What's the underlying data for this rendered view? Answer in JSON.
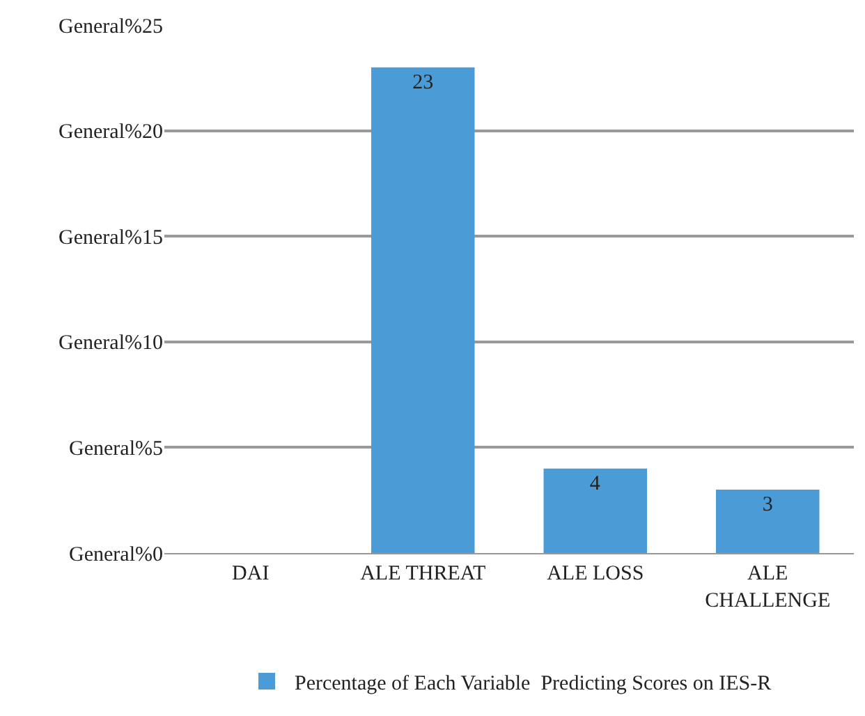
{
  "chart_data": {
    "type": "bar",
    "categories": [
      "DAI",
      "ALE THREAT",
      "ALE LOSS",
      "ALE CHALLENGE"
    ],
    "series": [
      {
        "name": "Percentage of Each Variable  Predicting Scores on IES-R",
        "color": "#4a9bd6",
        "values": [
          0,
          23,
          4,
          3
        ],
        "value_labels": [
          null,
          "23",
          "4",
          "3"
        ]
      }
    ],
    "ylim": [
      0,
      25
    ],
    "yticks": [
      {
        "value": 0,
        "label": "General%0"
      },
      {
        "value": 5,
        "label": "General%5"
      },
      {
        "value": 10,
        "label": "General%10"
      },
      {
        "value": 15,
        "label": "General%15"
      },
      {
        "value": 20,
        "label": "General%20"
      },
      {
        "value": 25,
        "label": "General%25"
      }
    ],
    "grid": "y",
    "legend": "bottom"
  }
}
